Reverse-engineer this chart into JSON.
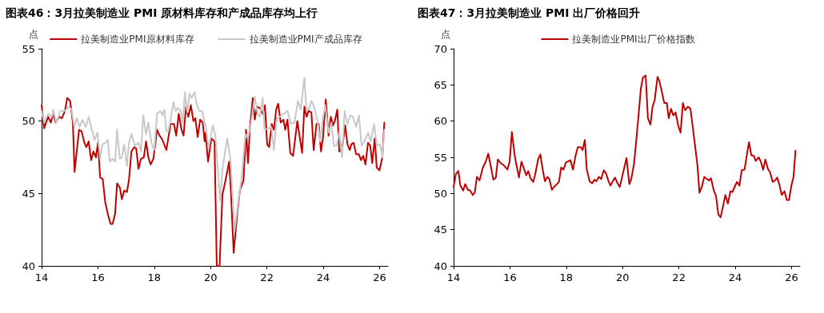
{
  "chart_data": [
    {
      "type": "line",
      "title": "图表46：3月拉美制造业 PMI 原材料库存和产成品库存均上行",
      "ylabel": "点",
      "legend": "top",
      "grid": false,
      "marker": "none",
      "xlim": [
        2014,
        2026.3
      ],
      "xticks": [
        {
          "value": 2014,
          "label": "14"
        },
        {
          "value": 2016,
          "label": "16"
        },
        {
          "value": 2018,
          "label": "18"
        },
        {
          "value": 2020,
          "label": "20"
        },
        {
          "value": 2022,
          "label": "22"
        },
        {
          "value": 2024,
          "label": "24"
        },
        {
          "value": 2026,
          "label": "26"
        }
      ],
      "ylim": [
        40,
        55
      ],
      "yticks": [
        40,
        45,
        50,
        55
      ],
      "series": [
        {
          "name": "拉美制造业PMI原材料库存",
          "color": "#c00000",
          "x": [
            2014.0,
            2014.09,
            2014.23,
            2014.33,
            2014.41,
            2014.5,
            2014.62,
            2014.72,
            2014.83,
            2014.91,
            2015.01,
            2015.11,
            2015.17,
            2015.33,
            2015.42,
            2015.52,
            2015.59,
            2015.67,
            2015.76,
            2015.84,
            2015.93,
            2016.0,
            2016.08,
            2016.17,
            2016.26,
            2016.36,
            2016.45,
            2016.52,
            2016.61,
            2016.68,
            2016.78,
            2016.85,
            2016.93,
            2017.03,
            2017.1,
            2017.19,
            2017.29,
            2017.36,
            2017.44,
            2017.53,
            2017.63,
            2017.71,
            2017.79,
            2017.87,
            2017.97,
            2018.1,
            2018.19,
            2018.29,
            2018.43,
            2018.58,
            2018.7,
            2018.78,
            2018.87,
            2018.97,
            2019.04,
            2019.13,
            2019.21,
            2019.3,
            2019.39,
            2019.46,
            2019.54,
            2019.63,
            2019.72,
            2019.79,
            2019.82,
            2019.91,
            2020.03,
            2020.14,
            2020.22,
            2020.32,
            2020.42,
            2020.53,
            2020.66,
            2020.72,
            2020.82,
            2020.95,
            2021.04,
            2021.17,
            2021.26,
            2021.33,
            2021.4,
            2021.5,
            2021.57,
            2021.65,
            2021.75,
            2021.85,
            2021.93,
            2022.01,
            2022.08,
            2022.17,
            2022.25,
            2022.33,
            2022.4,
            2022.49,
            2022.59,
            2022.65,
            2022.73,
            2022.83,
            2022.93,
            2023.08,
            2023.25,
            2023.33,
            2023.41,
            2023.48,
            2023.58,
            2023.66,
            2023.76,
            2023.84,
            2023.92,
            2023.99,
            2024.09,
            2024.19,
            2024.27,
            2024.35,
            2024.41,
            2024.5,
            2024.57,
            2024.67,
            2024.78,
            2024.86,
            2024.94,
            2025.0,
            2025.08,
            2025.17,
            2025.27,
            2025.34,
            2025.42,
            2025.5,
            2025.59,
            2025.67,
            2025.74,
            2025.83,
            2025.9,
            2026.0,
            2026.1,
            2026.17
          ],
          "values": [
            51.1,
            49.5,
            50.3,
            49.9,
            50.5,
            49.9,
            50.3,
            50.2,
            50.7,
            51.6,
            51.4,
            49.9,
            46.5,
            49.4,
            49.3,
            48.5,
            48.2,
            48.6,
            47.3,
            47.9,
            47.5,
            48.5,
            46.1,
            46.0,
            44.4,
            43.5,
            42.9,
            42.9,
            43.6,
            45.7,
            45.4,
            44.6,
            45.2,
            45.1,
            45.9,
            47.9,
            48.2,
            48.1,
            46.7,
            47.4,
            47.5,
            48.6,
            47.5,
            47.0,
            47.4,
            49.4,
            49.0,
            48.7,
            48.0,
            49.8,
            49.8,
            49.0,
            50.5,
            49.4,
            49.0,
            51.0,
            50.3,
            51.1,
            50.0,
            50.2,
            48.9,
            50.1,
            49.9,
            48.6,
            49.2,
            47.2,
            48.8,
            48.6,
            40.0,
            40.0,
            44.9,
            45.9,
            47.2,
            45.2,
            40.9,
            43.7,
            45.2,
            45.9,
            49.4,
            47.1,
            49.6,
            51.6,
            50.1,
            51.0,
            50.9,
            50.5,
            51.1,
            48.4,
            48.2,
            49.8,
            49.4,
            50.8,
            51.2,
            49.9,
            50.1,
            49.4,
            50.1,
            47.8,
            47.6,
            50.0,
            47.8,
            51.0,
            50.3,
            50.7,
            50.6,
            48.0,
            49.8,
            49.8,
            47.9,
            48.8,
            51.5,
            49.0,
            50.3,
            49.7,
            50.0,
            50.8,
            47.9,
            48.1,
            49.7,
            48.4,
            48.0,
            48.4,
            48.5,
            47.7,
            47.7,
            47.3,
            47.6,
            47.0,
            48.5,
            48.3,
            47.1,
            48.8,
            46.8,
            46.6,
            47.5,
            49.9
          ]
        },
        {
          "name": "拉美制造业PMI产成品库存",
          "color": "#c8c8c8",
          "x": [
            2014.0,
            2014.09,
            2014.23,
            2014.37,
            2014.41,
            2014.52,
            2014.67,
            2014.83,
            2014.96,
            2015.06,
            2015.16,
            2015.25,
            2015.35,
            2015.45,
            2015.57,
            2015.67,
            2015.77,
            2015.88,
            2015.98,
            2016.08,
            2016.16,
            2016.27,
            2016.35,
            2016.42,
            2016.52,
            2016.61,
            2016.68,
            2016.78,
            2016.85,
            2016.93,
            2017.03,
            2017.1,
            2017.19,
            2017.32,
            2017.44,
            2017.53,
            2017.61,
            2017.71,
            2017.79,
            2017.9,
            2018.0,
            2018.1,
            2018.21,
            2018.29,
            2018.36,
            2018.43,
            2018.5,
            2018.58,
            2018.68,
            2018.76,
            2018.84,
            2018.94,
            2019.01,
            2019.09,
            2019.17,
            2019.25,
            2019.33,
            2019.43,
            2019.5,
            2019.6,
            2019.7,
            2019.79,
            2019.82,
            2019.93,
            2020.08,
            2020.17,
            2020.34,
            2020.43,
            2020.59,
            2020.71,
            2020.85,
            2020.98,
            2021.09,
            2021.24,
            2021.33,
            2021.43,
            2021.57,
            2021.67,
            2021.75,
            2021.85,
            2021.91,
            2022.06,
            2022.16,
            2022.25,
            2022.35,
            2022.46,
            2022.59,
            2022.73,
            2022.85,
            2022.98,
            2023.1,
            2023.2,
            2023.33,
            2023.41,
            2023.51,
            2023.58,
            2023.68,
            2023.8,
            2023.89,
            2023.99,
            2024.07,
            2024.19,
            2024.29,
            2024.38,
            2024.48,
            2024.57,
            2024.67,
            2024.76,
            2024.86,
            2024.96,
            2025.05,
            2025.17,
            2025.27,
            2025.36,
            2025.46,
            2025.59,
            2025.68,
            2025.81,
            2025.9,
            2026.02,
            2026.1,
            2026.17
          ],
          "values": [
            50.7,
            49.9,
            50.5,
            50.3,
            50.8,
            49.9,
            50.7,
            50.7,
            51.0,
            50.8,
            49.6,
            50.2,
            49.6,
            50.1,
            49.6,
            50.3,
            49.5,
            48.7,
            49.2,
            47.4,
            48.4,
            48.5,
            48.7,
            47.2,
            47.4,
            47.2,
            49.4,
            47.4,
            47.5,
            48.4,
            46.9,
            48.5,
            49.1,
            48.3,
            48.5,
            47.9,
            50.4,
            49.1,
            49.9,
            48.5,
            48.0,
            50.5,
            50.7,
            50.4,
            50.8,
            49.3,
            49.3,
            50.1,
            51.3,
            50.7,
            50.9,
            50.7,
            49.8,
            52.0,
            50.6,
            51.9,
            51.6,
            52.0,
            51.2,
            50.7,
            50.7,
            49.8,
            49.8,
            48.1,
            49.7,
            49.0,
            44.5,
            46.8,
            48.8,
            47.3,
            42.4,
            44.4,
            45.9,
            49.1,
            48.8,
            49.8,
            51.7,
            50.5,
            50.3,
            51.6,
            49.4,
            49.5,
            49.6,
            48.0,
            50.2,
            50.3,
            50.5,
            50.7,
            49.8,
            49.9,
            51.4,
            50.8,
            53.0,
            50.7,
            50.9,
            51.4,
            51.0,
            50.0,
            48.6,
            50.2,
            51.1,
            49.2,
            49.9,
            48.3,
            48.3,
            49.3,
            47.5,
            50.7,
            49.8,
            50.4,
            50.3,
            49.6,
            50.4,
            48.3,
            48.6,
            49.2,
            48.6,
            49.8,
            48.3,
            48.4,
            47.5,
            49.4
          ]
        }
      ]
    },
    {
      "type": "line",
      "title": "图表47：3月拉美制造业 PMI 出厂价格回升",
      "ylabel": "点",
      "legend": "top",
      "grid": false,
      "marker": "none",
      "xlim": [
        2014,
        2026.3
      ],
      "xticks": [
        {
          "value": 2014,
          "label": "14"
        },
        {
          "value": 2016,
          "label": "16"
        },
        {
          "value": 2018,
          "label": "18"
        },
        {
          "value": 2020,
          "label": "20"
        },
        {
          "value": 2022,
          "label": "22"
        },
        {
          "value": 2024,
          "label": "24"
        },
        {
          "value": 2026,
          "label": "26"
        }
      ],
      "ylim": [
        40,
        70
      ],
      "yticks": [
        40,
        45,
        50,
        55,
        60,
        65,
        70
      ],
      "series": [
        {
          "name": "拉美制造业PMI出厂价格指数",
          "color": "#c00000",
          "x": [
            2014.0,
            2014.08,
            2014.17,
            2014.24,
            2014.34,
            2014.41,
            2014.51,
            2014.59,
            2014.68,
            2014.75,
            2014.83,
            2014.92,
            2015.04,
            2015.14,
            2015.23,
            2015.33,
            2015.41,
            2015.5,
            2015.57,
            2015.67,
            2015.78,
            2015.91,
            2015.99,
            2016.07,
            2016.17,
            2016.24,
            2016.32,
            2016.41,
            2016.5,
            2016.58,
            2016.65,
            2016.73,
            2016.83,
            2016.9,
            2017.0,
            2017.08,
            2017.16,
            2017.24,
            2017.33,
            2017.4,
            2017.49,
            2017.58,
            2017.65,
            2017.74,
            2017.82,
            2017.9,
            2017.99,
            2018.15,
            2018.24,
            2018.33,
            2018.41,
            2018.51,
            2018.58,
            2018.66,
            2018.73,
            2018.83,
            2018.92,
            2019.0,
            2019.07,
            2019.16,
            2019.24,
            2019.33,
            2019.41,
            2019.5,
            2019.57,
            2019.67,
            2019.73,
            2019.81,
            2019.9,
            2020.02,
            2020.14,
            2020.24,
            2020.31,
            2020.41,
            2020.5,
            2020.58,
            2020.65,
            2020.72,
            2020.82,
            2020.9,
            2020.99,
            2021.06,
            2021.14,
            2021.24,
            2021.3,
            2021.38,
            2021.48,
            2021.57,
            2021.64,
            2021.72,
            2021.8,
            2021.88,
            2021.98,
            2022.06,
            2022.14,
            2022.22,
            2022.32,
            2022.41,
            2022.53,
            2022.66,
            2022.73,
            2022.82,
            2022.9,
            2023.0,
            2023.07,
            2023.14,
            2023.24,
            2023.32,
            2023.4,
            2023.48,
            2023.57,
            2023.65,
            2023.74,
            2023.83,
            2023.9,
            2023.99,
            2024.06,
            2024.15,
            2024.23,
            2024.33,
            2024.42,
            2024.49,
            2024.57,
            2024.66,
            2024.73,
            2024.83,
            2024.91,
            2024.99,
            2025.07,
            2025.16,
            2025.24,
            2025.33,
            2025.41,
            2025.49,
            2025.57,
            2025.65,
            2025.75,
            2025.83,
            2025.91,
            2025.99,
            2026.07,
            2026.14
          ],
          "values": [
            50.9,
            52.7,
            53.1,
            51.1,
            50.4,
            51.3,
            50.5,
            50.4,
            49.8,
            50.1,
            52.3,
            51.8,
            53.6,
            54.4,
            55.5,
            53.6,
            51.9,
            52.2,
            54.7,
            54.2,
            53.9,
            53.3,
            54.4,
            58.5,
            55.2,
            53.8,
            52.2,
            54.4,
            53.4,
            52.5,
            53.1,
            52.1,
            51.6,
            52.7,
            54.7,
            55.4,
            53.4,
            51.7,
            52.3,
            52.0,
            50.5,
            51.0,
            51.2,
            51.6,
            53.6,
            53.3,
            54.3,
            54.6,
            53.3,
            55.2,
            56.4,
            56.4,
            56.0,
            57.4,
            53.3,
            51.7,
            51.4,
            51.9,
            51.7,
            52.3,
            52.0,
            53.2,
            52.8,
            51.7,
            51.1,
            51.8,
            52.2,
            51.5,
            50.9,
            52.9,
            54.9,
            51.3,
            52.0,
            54.2,
            57.9,
            61.4,
            64.5,
            66.0,
            66.3,
            60.4,
            59.5,
            61.9,
            62.9,
            66.1,
            65.6,
            64.3,
            62.5,
            62.5,
            60.4,
            61.7,
            60.8,
            61.2,
            59.3,
            58.4,
            62.5,
            61.5,
            62.0,
            61.7,
            58.0,
            53.8,
            50.1,
            51.0,
            52.3,
            52.0,
            51.8,
            52.1,
            50.4,
            49.6,
            47.1,
            46.7,
            48.3,
            49.8,
            48.6,
            50.3,
            50.2,
            51.0,
            51.6,
            51.1,
            53.2,
            53.3,
            55.5,
            57.1,
            55.3,
            55.2,
            54.5,
            55.0,
            54.4,
            53.3,
            54.7,
            53.4,
            52.9,
            51.6,
            51.8,
            52.2,
            51.2,
            49.8,
            50.3,
            49.1,
            49.1,
            51.0,
            52.3,
            55.9
          ]
        }
      ]
    }
  ]
}
